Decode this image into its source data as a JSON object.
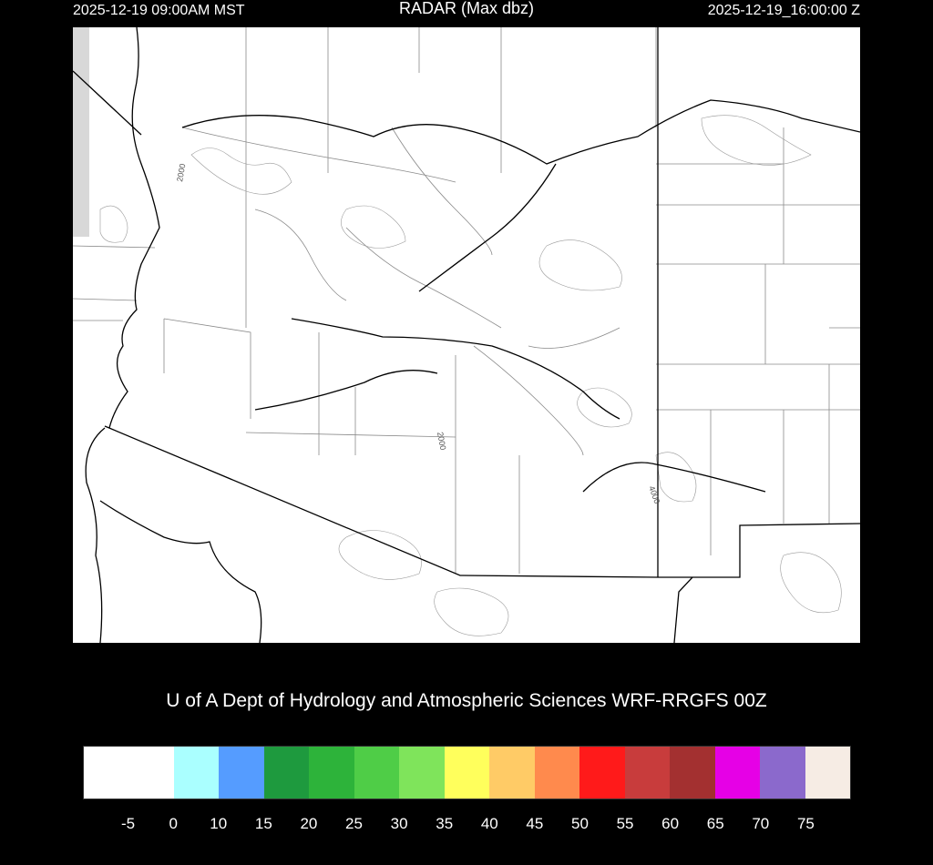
{
  "header": {
    "local_time": "2025-12-19 09:00AM MST",
    "title": "RADAR (Max dbz)",
    "utc_time": "2025-12-19_16:00:00 Z"
  },
  "map": {
    "contour_labels": [
      "2000",
      "2000",
      "4000"
    ],
    "background": "#ffffff",
    "line_color": "#808080",
    "boundary_color": "#000000"
  },
  "credit": "U of A Dept of Hydrology and Atmospheric Sciences WRF-RRGFS 00Z",
  "colorbar": {
    "ticks": [
      "-5",
      "0",
      "10",
      "15",
      "20",
      "25",
      "30",
      "35",
      "40",
      "45",
      "50",
      "55",
      "60",
      "65",
      "70",
      "75"
    ],
    "colors": [
      "#ffffff",
      "#aaffff",
      "#559cff",
      "#1e9a3e",
      "#2db33a",
      "#4fcd47",
      "#7fe45b",
      "#ffff5c",
      "#ffcb66",
      "#ff8a4d",
      "#ff1a1a",
      "#c83c3c",
      "#a33030",
      "#e600e6",
      "#8b69cc",
      "#f6ece4"
    ]
  }
}
